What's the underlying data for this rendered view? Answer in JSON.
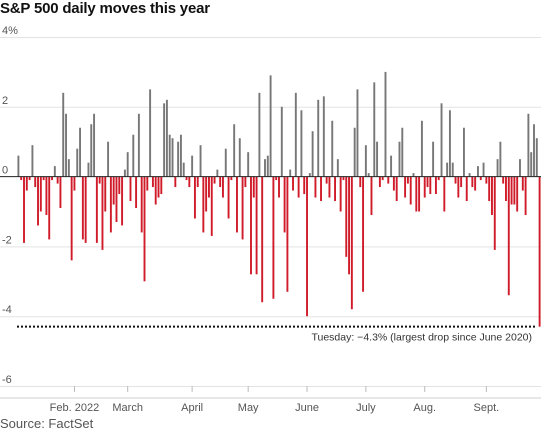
{
  "title": "S&P 500 daily moves this year",
  "source": "Source: FactSet",
  "colors": {
    "up": "#777777",
    "down": "#d01c2a",
    "grid": "#e3e3e3",
    "zero": "#222222"
  },
  "chart_data": {
    "type": "bar",
    "title": "S&P 500 daily moves this year",
    "xlabel": "",
    "ylabel": "",
    "ylim": [
      -6,
      4
    ],
    "yticks": [
      {
        "value": 4,
        "label": "4%"
      },
      {
        "value": 2,
        "label": "2"
      },
      {
        "value": 0,
        "label": "0"
      },
      {
        "value": -2,
        "label": "-2"
      },
      {
        "value": -4,
        "label": "-4"
      },
      {
        "value": -6,
        "label": "-6"
      }
    ],
    "month_labels": [
      {
        "label": "Feb. 2022",
        "index": 20
      },
      {
        "label": "March",
        "index": 39
      },
      {
        "label": "April",
        "index": 62
      },
      {
        "label": "May",
        "index": 82
      },
      {
        "label": "June",
        "index": 103
      },
      {
        "label": "July",
        "index": 124
      },
      {
        "label": "Aug.",
        "index": 145
      },
      {
        "label": "Sept.",
        "index": 167
      }
    ],
    "grid": true,
    "values": [
      0.6,
      -0.1,
      -1.9,
      -0.4,
      -0.1,
      0.9,
      -0.3,
      -1.4,
      -1.0,
      -0.1,
      -1.1,
      -1.8,
      -0.1,
      0.3,
      -0.2,
      -0.9,
      2.4,
      1.8,
      0.5,
      -2.4,
      -0.4,
      0.8,
      1.4,
      -1.8,
      -1.9,
      0.4,
      1.5,
      1.8,
      -1.9,
      -0.2,
      -2.1,
      -1.0,
      1.0,
      -1.6,
      -0.8,
      -1.3,
      -0.5,
      -1.4,
      0.2,
      0.7,
      -0.7,
      1.2,
      -0.9,
      1.8,
      -1.6,
      -3.0,
      -0.4,
      2.5,
      -0.3,
      -0.8,
      -0.6,
      -0.5,
      2.1,
      2.2,
      1.2,
      1.1,
      -0.3,
      1.0,
      1.2,
      0.4,
      -0.1,
      -0.3,
      0.6,
      -1.2,
      -0.3,
      0.9,
      -1.6,
      -1.0,
      -0.6,
      -1.7,
      -0.2,
      0.2,
      -0.3,
      -0.6,
      0.8,
      -1.2,
      -0.1,
      1.5,
      -1.6,
      1.1,
      -1.8,
      -0.3,
      0.7,
      -2.8,
      -0.6,
      -2.8,
      2.4,
      -3.6,
      0.5,
      0.6,
      2.9,
      -3.5,
      -0.1,
      -0.6,
      2.0,
      -1.6,
      -3.3,
      0.2,
      -0.4,
      2.4,
      -0.6,
      1.9,
      -0.5,
      -4.0,
      0.1,
      1.3,
      -0.6,
      2.2,
      -0.7,
      2.3,
      -0.2,
      -0.6,
      1.6,
      -0.7,
      0.5,
      -1.0,
      -0.1,
      -2.3,
      -2.8,
      -3.8,
      1.4,
      2.5,
      -0.3,
      -3.3,
      0.9,
      0.1,
      -1.1,
      2.7,
      1.0,
      -0.3,
      -0.1,
      3.0,
      -0.2,
      0.6,
      -0.4,
      -0.7,
      1.0,
      1.4,
      -0.6,
      -0.2,
      -0.8,
      0.1,
      -1.0,
      -1.0,
      1.6,
      -0.6,
      -0.3,
      -0.5,
      1.0,
      -0.5,
      -0.1,
      2.1,
      -1.0,
      0.4,
      1.9,
      0.4,
      -0.2,
      -0.6,
      -0.3,
      1.4,
      -0.7,
      0.1,
      -0.3,
      -0.4,
      0.3,
      -0.1,
      0.4,
      -0.2,
      -0.7,
      -1.1,
      -2.1,
      0.5,
      1.0,
      -0.2,
      -0.7,
      -3.4,
      -0.8,
      -0.8,
      -1.0,
      0.5,
      -0.4,
      -1.1,
      1.8,
      0.7,
      1.5,
      1.1,
      -4.3
    ],
    "annotations": [
      {
        "text": "Tuesday: −4.3% (largest drop since June 2020)",
        "y": -4.3
      }
    ]
  }
}
